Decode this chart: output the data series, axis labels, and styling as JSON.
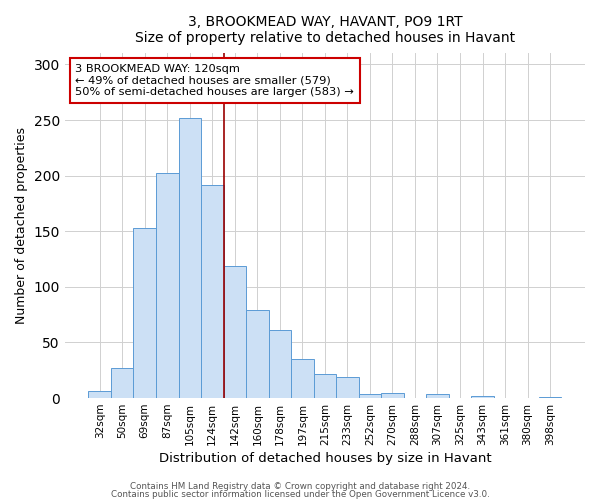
{
  "title": "3, BROOKMEAD WAY, HAVANT, PO9 1RT",
  "subtitle": "Size of property relative to detached houses in Havant",
  "xlabel": "Distribution of detached houses by size in Havant",
  "ylabel": "Number of detached properties",
  "bar_labels": [
    "32sqm",
    "50sqm",
    "69sqm",
    "87sqm",
    "105sqm",
    "124sqm",
    "142sqm",
    "160sqm",
    "178sqm",
    "197sqm",
    "215sqm",
    "233sqm",
    "252sqm",
    "270sqm",
    "288sqm",
    "307sqm",
    "325sqm",
    "343sqm",
    "361sqm",
    "380sqm",
    "398sqm"
  ],
  "bar_values": [
    6,
    27,
    153,
    202,
    252,
    192,
    119,
    79,
    61,
    35,
    22,
    19,
    4,
    5,
    0,
    4,
    0,
    2,
    0,
    0,
    1
  ],
  "bar_color": "#cce0f5",
  "bar_edge_color": "#5b9bd5",
  "vline_color": "#990000",
  "ylim": [
    0,
    310
  ],
  "yticks": [
    0,
    50,
    100,
    150,
    200,
    250,
    300
  ],
  "annotation_title": "3 BROOKMEAD WAY: 120sqm",
  "annotation_line1": "← 49% of detached houses are smaller (579)",
  "annotation_line2": "50% of semi-detached houses are larger (583) →",
  "annotation_box_color": "#ffffff",
  "annotation_box_edge": "#cc0000",
  "footer1": "Contains HM Land Registry data © Crown copyright and database right 2024.",
  "footer2": "Contains public sector information licensed under the Open Government Licence v3.0.",
  "background_color": "#ffffff",
  "grid_color": "#d0d0d0"
}
